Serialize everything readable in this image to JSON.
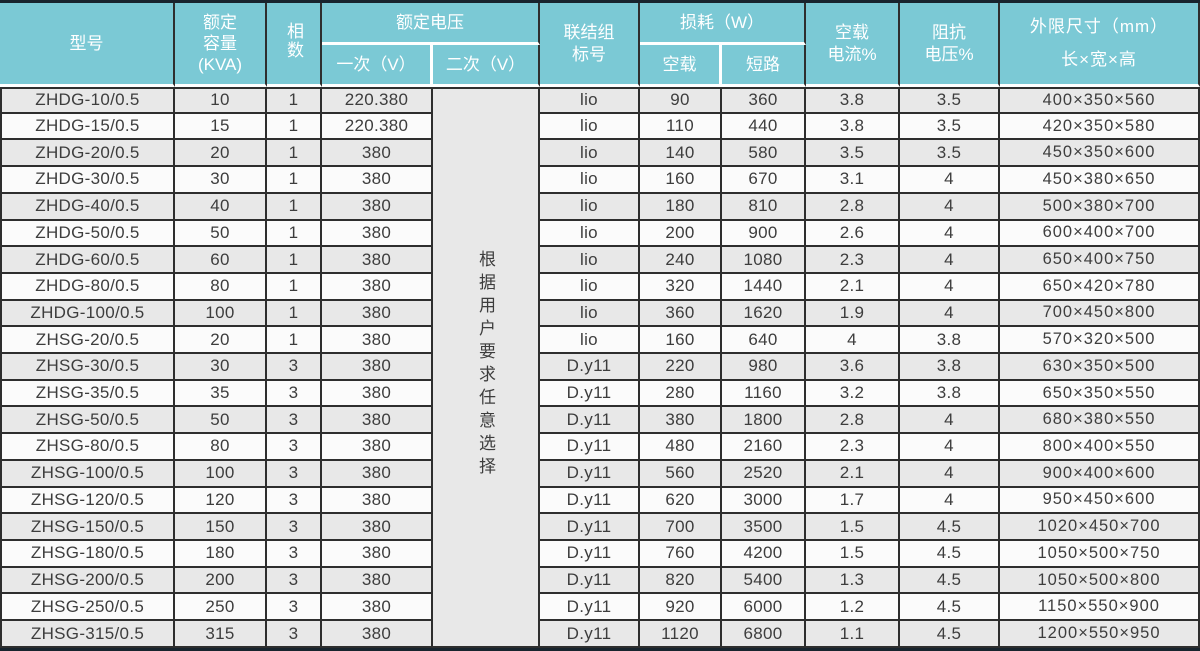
{
  "table": {
    "header": {
      "model": "型号",
      "capacity": "额定容量(KVA)",
      "phases": "相数",
      "rated_voltage": "额定电压",
      "primary": "一次（V）",
      "secondary": "二次（V）",
      "connection_group": "联结组标号",
      "loss": "损耗（W）",
      "no_load": "空载",
      "short_circuit": "短路",
      "no_load_current_pct": "空载电流%",
      "impedance_voltage_pct": "阻抗电压%",
      "dimensions": "外限尺寸（mm）",
      "dimensions_sub": "长×宽×高"
    },
    "secondary_note": "根据用户要求任意选择",
    "rows": [
      [
        "ZHDG-10/0.5",
        "10",
        "1",
        "220.380",
        "lio",
        "90",
        "360",
        "3.8",
        "3.5",
        "400×350×560"
      ],
      [
        "ZHDG-15/0.5",
        "15",
        "1",
        "220.380",
        "lio",
        "110",
        "440",
        "3.8",
        "3.5",
        "420×350×580"
      ],
      [
        "ZHDG-20/0.5",
        "20",
        "1",
        "380",
        "lio",
        "140",
        "580",
        "3.5",
        "3.5",
        "450×350×600"
      ],
      [
        "ZHDG-30/0.5",
        "30",
        "1",
        "380",
        "lio",
        "160",
        "670",
        "3.1",
        "4",
        "450×380×650"
      ],
      [
        "ZHDG-40/0.5",
        "40",
        "1",
        "380",
        "lio",
        "180",
        "810",
        "2.8",
        "4",
        "500×380×700"
      ],
      [
        "ZHDG-50/0.5",
        "50",
        "1",
        "380",
        "lio",
        "200",
        "900",
        "2.6",
        "4",
        "600×400×700"
      ],
      [
        "ZHDG-60/0.5",
        "60",
        "1",
        "380",
        "lio",
        "240",
        "1080",
        "2.3",
        "4",
        "650×400×750"
      ],
      [
        "ZHDG-80/0.5",
        "80",
        "1",
        "380",
        "lio",
        "320",
        "1440",
        "2.1",
        "4",
        "650×420×780"
      ],
      [
        "ZHDG-100/0.5",
        "100",
        "1",
        "380",
        "lio",
        "360",
        "1620",
        "1.9",
        "4",
        "700×450×800"
      ],
      [
        "ZHSG-20/0.5",
        "20",
        "1",
        "380",
        "lio",
        "160",
        "640",
        "4",
        "3.8",
        "570×320×500"
      ],
      [
        "ZHSG-30/0.5",
        "30",
        "3",
        "380",
        "D.y11",
        "220",
        "980",
        "3.6",
        "3.8",
        "630×350×500"
      ],
      [
        "ZHSG-35/0.5",
        "35",
        "3",
        "380",
        "D.y11",
        "280",
        "1160",
        "3.2",
        "3.8",
        "650×350×550"
      ],
      [
        "ZHSG-50/0.5",
        "50",
        "3",
        "380",
        "D.y11",
        "380",
        "1800",
        "2.8",
        "4",
        "680×380×550"
      ],
      [
        "ZHSG-80/0.5",
        "80",
        "3",
        "380",
        "D.y11",
        "480",
        "2160",
        "2.3",
        "4",
        "800×400×550"
      ],
      [
        "ZHSG-100/0.5",
        "100",
        "3",
        "380",
        "D.y11",
        "560",
        "2520",
        "2.1",
        "4",
        "900×400×600"
      ],
      [
        "ZHSG-120/0.5",
        "120",
        "3",
        "380",
        "D.y11",
        "620",
        "3000",
        "1.7",
        "4",
        "950×450×600"
      ],
      [
        "ZHSG-150/0.5",
        "150",
        "3",
        "380",
        "D.y11",
        "700",
        "3500",
        "1.5",
        "4.5",
        "1020×450×700"
      ],
      [
        "ZHSG-180/0.5",
        "180",
        "3",
        "380",
        "D.y11",
        "760",
        "4200",
        "1.5",
        "4.5",
        "1050×500×750"
      ],
      [
        "ZHSG-200/0.5",
        "200",
        "3",
        "380",
        "D.y11",
        "820",
        "5400",
        "1.3",
        "4.5",
        "1050×500×800"
      ],
      [
        "ZHSG-250/0.5",
        "250",
        "3",
        "380",
        "D.y11",
        "920",
        "6000",
        "1.2",
        "4.5",
        "1150×550×900"
      ],
      [
        "ZHSG-315/0.5",
        "315",
        "3",
        "380",
        "D.y11",
        "1120",
        "6800",
        "1.1",
        "4.5",
        "1200×550×950"
      ]
    ]
  },
  "colors": {
    "header_bg": "#7bc9d5",
    "header_text": "#ffffff",
    "row_alt": "#e8e8e8",
    "row_base": "#fbfbfb",
    "grid_line": "#2e2e2e",
    "frame_line": "#18242e"
  }
}
